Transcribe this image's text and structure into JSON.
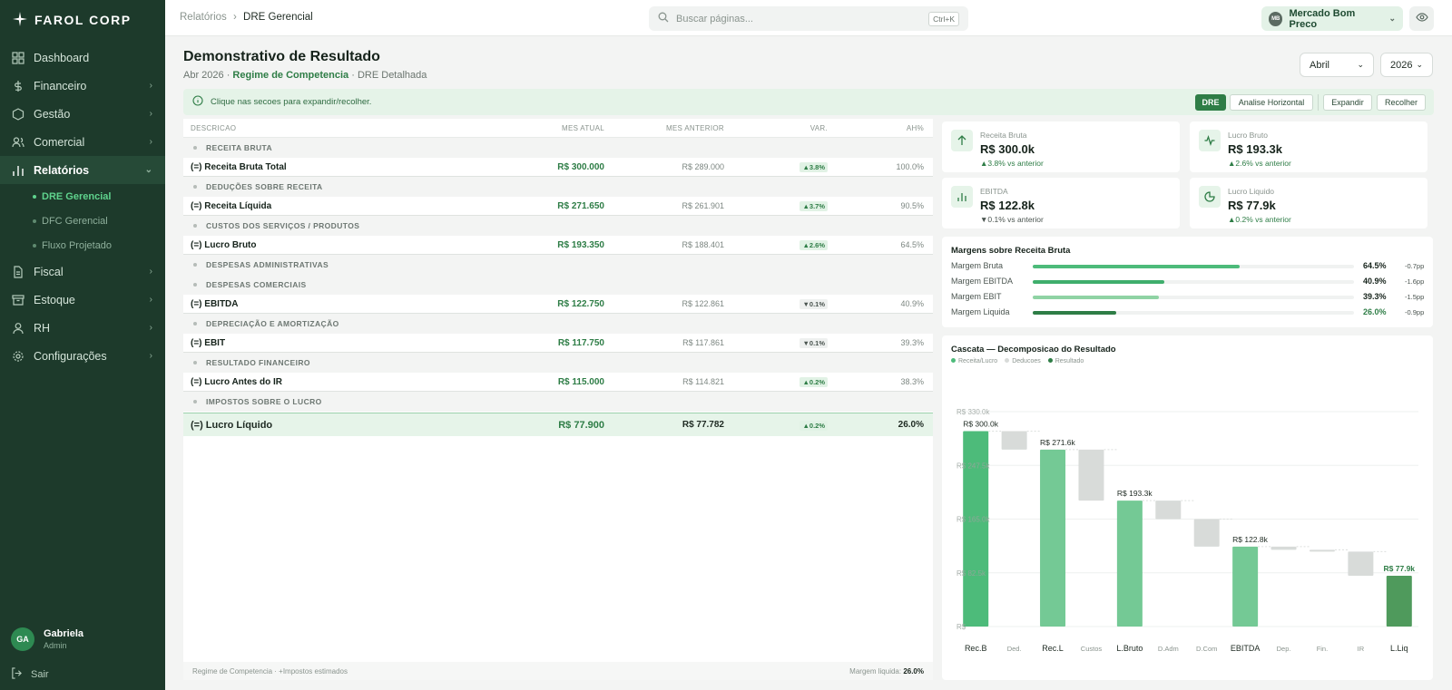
{
  "brand": {
    "name": "FAROL CORP"
  },
  "sidebar": {
    "items": [
      {
        "label": "Dashboard"
      },
      {
        "label": "Financeiro"
      },
      {
        "label": "Gestão"
      },
      {
        "label": "Comercial"
      },
      {
        "label": "Relatórios"
      },
      {
        "label": "Fiscal"
      },
      {
        "label": "Estoque"
      },
      {
        "label": "RH"
      },
      {
        "label": "Configurações"
      }
    ],
    "subitems": [
      {
        "label": "DRE Gerencial"
      },
      {
        "label": "DFC Gerencial"
      },
      {
        "label": "Fluxo Projetado"
      }
    ],
    "user": {
      "initials": "GA",
      "name": "Gabriela",
      "role": "Admin"
    },
    "logout": "Sair"
  },
  "topbar": {
    "breadcrumb_parent": "Relatórios",
    "breadcrumb_sep": "›",
    "breadcrumb_current": "DRE Gerencial",
    "search_placeholder": "Buscar páginas...",
    "search_shortcut": "Ctrl+K",
    "company_initials": "MB",
    "company_name": "Mercado Bom Preco"
  },
  "page": {
    "title": "Demonstrativo de Resultado",
    "sub_period": "Abr 2026 · ",
    "sub_regime": "Regime de Competencia",
    "sub_view": " · DRE Detalhada",
    "month": "Abril",
    "year": "2026",
    "hint": "Clique nas secoes para expandir/recolher.",
    "btn_dre": "DRE",
    "btn_ah": "Analise Horizontal",
    "btn_expand": "Expandir",
    "btn_collapse": "Recolher"
  },
  "table": {
    "headers": [
      "DESCRICAO",
      "MES ATUAL",
      "MES ANTERIOR",
      "VAR.",
      "AH%"
    ],
    "rows": [
      {
        "kind": "section",
        "label": "RECEITA BRUTA"
      },
      {
        "kind": "total",
        "label": "(=) Receita Bruta Total",
        "current": "R$ 300.000",
        "previous": "R$ 289.000",
        "var": "▲3.8%",
        "dir": "up",
        "ah": "100.0%"
      },
      {
        "kind": "section",
        "label": "DEDUÇÕES SOBRE RECEITA"
      },
      {
        "kind": "total",
        "label": "(=) Receita Líquida",
        "current": "R$ 271.650",
        "previous": "R$ 261.901",
        "var": "▲3.7%",
        "dir": "up",
        "ah": "90.5%"
      },
      {
        "kind": "section",
        "label": "CUSTOS DOS SERVIÇOS / PRODUTOS"
      },
      {
        "kind": "total",
        "label": "(=) Lucro Bruto",
        "current": "R$ 193.350",
        "previous": "R$ 188.401",
        "var": "▲2.6%",
        "dir": "up",
        "ah": "64.5%"
      },
      {
        "kind": "section",
        "label": "DESPESAS ADMINISTRATIVAS"
      },
      {
        "kind": "section",
        "label": "DESPESAS COMERCIAIS"
      },
      {
        "kind": "total",
        "label": "(=) EBITDA",
        "current": "R$ 122.750",
        "previous": "R$ 122.861",
        "var": "▼0.1%",
        "dir": "down",
        "ah": "40.9%"
      },
      {
        "kind": "section",
        "label": "DEPRECIAÇÃO E AMORTIZAÇÃO"
      },
      {
        "kind": "total",
        "label": "(=) EBIT",
        "current": "R$ 117.750",
        "previous": "R$ 117.861",
        "var": "▼0.1%",
        "dir": "down",
        "ah": "39.3%"
      },
      {
        "kind": "section",
        "label": "RESULTADO FINANCEIRO"
      },
      {
        "kind": "total",
        "label": "(=) Lucro Antes do IR",
        "current": "R$ 115.000",
        "previous": "R$ 114.821",
        "var": "▲0.2%",
        "dir": "up",
        "ah": "38.3%"
      },
      {
        "kind": "section",
        "label": "IMPOSTOS SOBRE O LUCRO"
      },
      {
        "kind": "final",
        "label": "(=) Lucro Líquido",
        "current": "R$ 77.900",
        "previous": "R$ 77.782",
        "var": "▲0.2%",
        "dir": "up",
        "ah": "26.0%"
      }
    ],
    "footer_left": "Regime de Competencia · +Impostos estimados",
    "footer_right_label": "Margem liquida: ",
    "footer_right_value": "26.0%"
  },
  "kpis": [
    {
      "label": "Receita Bruta",
      "value": "R$ 300.0k",
      "delta": "▲3.8% vs anterior",
      "icon": "arrow-up-icon",
      "dir": "up"
    },
    {
      "label": "Lucro Bruto",
      "value": "R$ 193.3k",
      "delta": "▲2.6% vs anterior",
      "icon": "pulse-icon",
      "dir": "up"
    },
    {
      "label": "EBITDA",
      "value": "R$ 122.8k",
      "delta": "▼0.1% vs anterior",
      "icon": "bar-chart-icon",
      "dir": "down"
    },
    {
      "label": "Lucro Liquido",
      "value": "R$ 77.9k",
      "delta": "▲0.2% vs anterior",
      "icon": "pie-icon",
      "dir": "up"
    }
  ],
  "margins": {
    "title": "Margens sobre Receita Bruta",
    "rows": [
      {
        "label": "Margem Bruta",
        "value": 0.645,
        "pct": "64.5%",
        "delta": "-0.7pp",
        "color": "#4dbb7a"
      },
      {
        "label": "Margem EBITDA",
        "value": 0.409,
        "pct": "40.9%",
        "delta": "-1.6pp",
        "color": "#3fae6c"
      },
      {
        "label": "Margem EBIT",
        "value": 0.393,
        "pct": "39.3%",
        "delta": "-1.5pp",
        "color": "#8fd3a4"
      },
      {
        "label": "Margem Liquida",
        "value": 0.26,
        "pct": "26.0%",
        "delta": "-0.9pp",
        "color": "#2e7d46"
      }
    ]
  },
  "colors": {
    "revenue": "#74c995",
    "deduction": "#d8dbd9",
    "result": "#4f9a5c",
    "first": "#4dbb7a"
  },
  "chart_data": {
    "type": "bar",
    "title": "Cascata — Decomposicao do Resultado",
    "legend": [
      "Receita/Lucro",
      "Deducoes",
      "Resultado"
    ],
    "legend_position": "top-left",
    "categories": [
      "Rec.B",
      "Ded.",
      "Rec.L",
      "Custos",
      "L.Bruto",
      "D.Adm",
      "D.Com",
      "EBITDA",
      "Dep.",
      "Fin.",
      "IR",
      "L.Liq"
    ],
    "kinds": [
      "total",
      "delta",
      "total",
      "delta",
      "total",
      "delta",
      "delta",
      "total",
      "delta",
      "delta",
      "delta",
      "result"
    ],
    "start": [
      0,
      271.65,
      0,
      193.35,
      0,
      165.0,
      122.75,
      0,
      117.75,
      115.0,
      77.9,
      0
    ],
    "end": [
      300.0,
      300.0,
      271.65,
      271.65,
      193.35,
      193.35,
      165.0,
      122.75,
      122.75,
      117.75,
      115.0,
      77.9
    ],
    "data_labels": [
      "R$ 300.0k",
      "",
      "R$ 271.6k",
      "",
      "R$ 193.3k",
      "",
      "",
      "R$ 122.8k",
      "",
      "",
      "",
      "R$ 77.9k"
    ],
    "y_ticks": [
      0,
      82.5,
      165.0,
      247.5,
      330.0
    ],
    "y_tick_labels": [
      "R$",
      "R$ 82.5k",
      "R$ 165.0k",
      "R$ 247.5k",
      "R$ 330.0k"
    ],
    "ylim": [
      0,
      330
    ],
    "grid": true
  }
}
